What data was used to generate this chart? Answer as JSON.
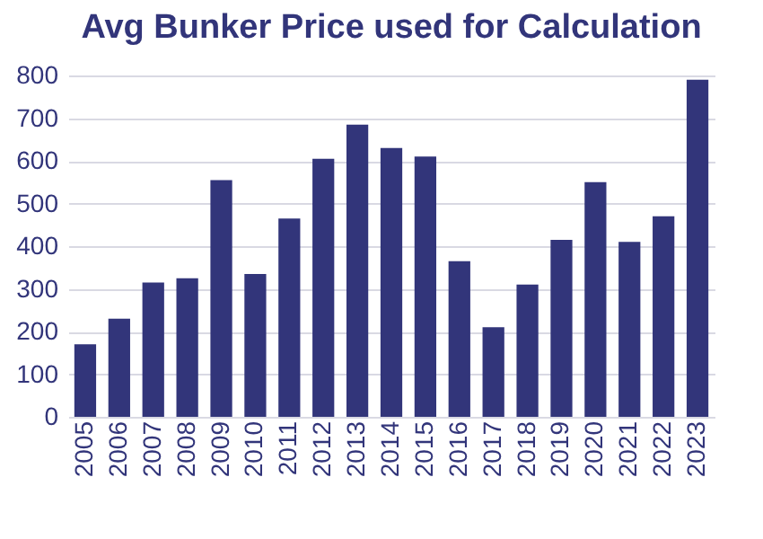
{
  "chart_data": {
    "type": "bar",
    "title": "Avg Bunker Price used for Calculation",
    "categories": [
      "2005",
      "2006",
      "2007",
      "2008",
      "2009",
      "2010",
      "2011",
      "2012",
      "2013",
      "2014",
      "2015",
      "2016",
      "2017",
      "2018",
      "2019",
      "2020",
      "2021",
      "2022",
      "2023"
    ],
    "values": [
      170,
      230,
      315,
      325,
      555,
      335,
      465,
      605,
      685,
      630,
      610,
      365,
      210,
      310,
      415,
      550,
      410,
      470,
      790
    ],
    "color": "#32357a",
    "ylim": [
      0,
      800
    ],
    "yticks": [
      0,
      100,
      200,
      300,
      400,
      500,
      600,
      700,
      800
    ],
    "grid": "y"
  }
}
